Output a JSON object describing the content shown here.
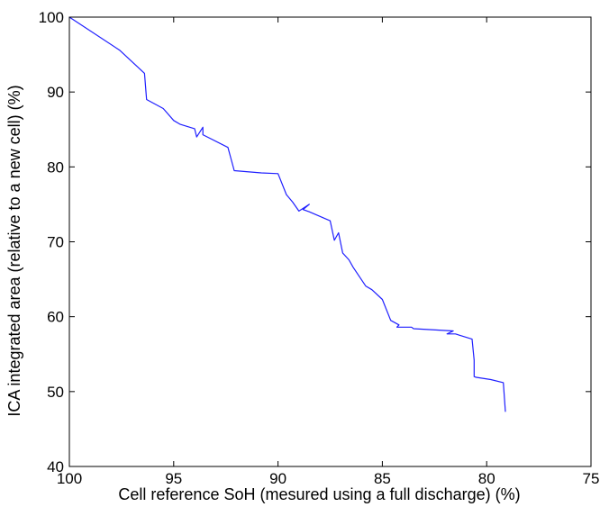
{
  "chart_data": {
    "type": "line",
    "title": "",
    "xlabel": "Cell reference SoH (mesured using a full discharge) (%)",
    "ylabel": "ICA integrated area (relative to a new cell) (%)",
    "xlim": [
      100,
      75
    ],
    "ylim": [
      40,
      100
    ],
    "x_reversed": true,
    "grid": false,
    "legend": "none",
    "xticks": [
      100,
      95,
      90,
      85,
      80,
      75
    ],
    "yticks": [
      40,
      50,
      60,
      70,
      80,
      90,
      100
    ],
    "line_color": "#1f1fff",
    "series": [
      {
        "x": [
          100,
          97.6,
          96.4,
          96.3,
          95.5,
          95.0,
          94.7,
          94.0,
          93.9,
          93.6,
          93.6,
          92.4,
          92.1,
          90.8,
          90.0,
          89.6,
          89.3,
          89.0,
          88.5,
          88.8,
          88.5,
          87.5,
          87.3,
          87.1,
          86.9,
          86.6,
          86.4,
          85.8,
          85.5,
          85.0,
          84.6,
          84.2,
          84.3,
          83.6,
          83.5,
          81.6,
          81.9,
          81.5,
          80.7,
          80.6,
          80.6,
          80.5,
          79.8,
          79.2,
          79.1
        ],
        "y": [
          100,
          95.6,
          92.5,
          89.0,
          87.8,
          86.2,
          85.7,
          85.1,
          84.0,
          85.3,
          84.3,
          82.6,
          79.5,
          79.2,
          79.1,
          76.3,
          75.3,
          74.1,
          75.0,
          74.3,
          74.0,
          72.8,
          70.2,
          71.2,
          68.5,
          67.6,
          66.6,
          64.1,
          63.6,
          62.3,
          59.5,
          58.9,
          58.6,
          58.6,
          58.4,
          58.1,
          57.7,
          57.7,
          57.0,
          54.2,
          52.0,
          51.9,
          51.6,
          51.2,
          47.3
        ]
      }
    ]
  }
}
